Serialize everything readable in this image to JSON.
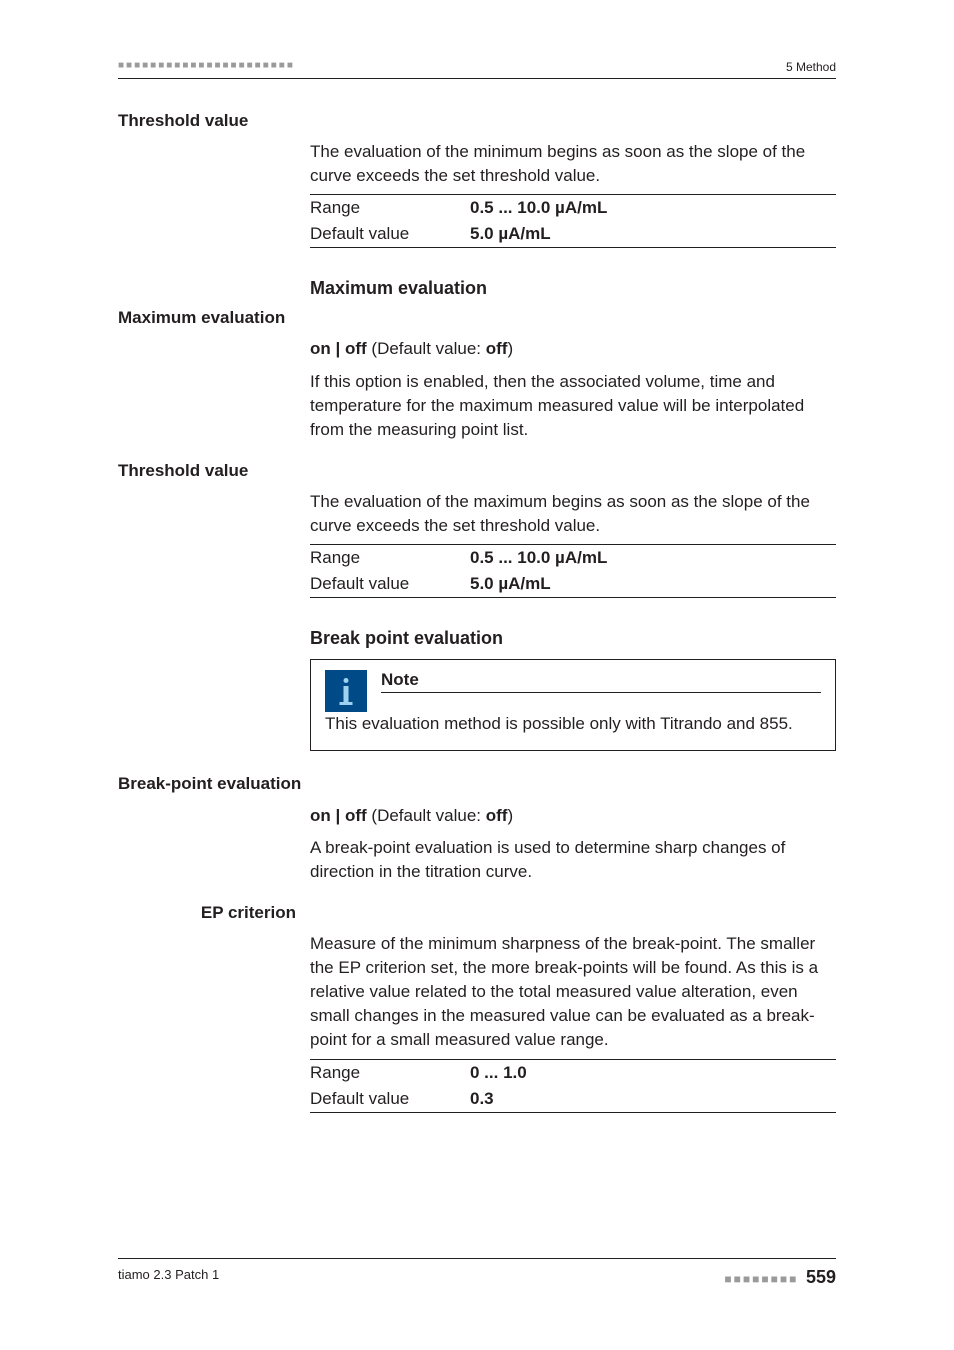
{
  "header": {
    "section": "5 Method",
    "header_dots": "■■■■■■■■■■■■■■■■■■■■■■"
  },
  "footer": {
    "product": "tiamo 2.3 Patch 1",
    "footer_dots": "■■■■■■■■",
    "page": "559"
  },
  "threshold1": {
    "label": "Threshold value",
    "desc": "The evaluation of the minimum begins as soon as the slope of the curve exceeds the set threshold value.",
    "range_key": "Range",
    "range_val": "0.5 ... 10.0 µA/mL",
    "default_key": "Default value",
    "default_val": "5.0 µA/mL"
  },
  "max_eval": {
    "heading": "Maximum evaluation",
    "label": "Maximum evaluation",
    "onoff_prefix": "on | off",
    "onoff_mid": " (Default value: ",
    "onoff_val": "off",
    "onoff_suffix": ")",
    "desc": "If this option is enabled, then the associated volume, time and temperature for the maximum measured value will be interpolated from the measuring point list."
  },
  "threshold2": {
    "label": "Threshold value",
    "desc": "The evaluation of the maximum begins as soon as the slope of the curve exceeds the set threshold value.",
    "range_key": "Range",
    "range_val": "0.5 ... 10.0 µA/mL",
    "default_key": "Default value",
    "default_val": "5.0 µA/mL"
  },
  "break_eval": {
    "heading": "Break point evaluation",
    "note_title": "Note",
    "note_text": "This evaluation method is possible only with Titrando and 855.",
    "label": "Break-point evaluation",
    "onoff_prefix": "on | off",
    "onoff_mid": " (Default value: ",
    "onoff_val": "off",
    "onoff_suffix": ")",
    "desc": "A break-point evaluation is used to determine sharp changes of direction in the titration curve."
  },
  "ep_crit": {
    "label": "EP criterion",
    "desc": "Measure of the minimum sharpness of the break-point. The smaller the EP criterion set, the more break-points will be found. As this is a relative value related to the total measured value alteration, even small changes in the measured value can be evaluated as a break-point for a small measured value range.",
    "range_key": "Range",
    "range_val": "0 ... 1.0",
    "default_key": "Default value",
    "default_val": "0.3"
  }
}
